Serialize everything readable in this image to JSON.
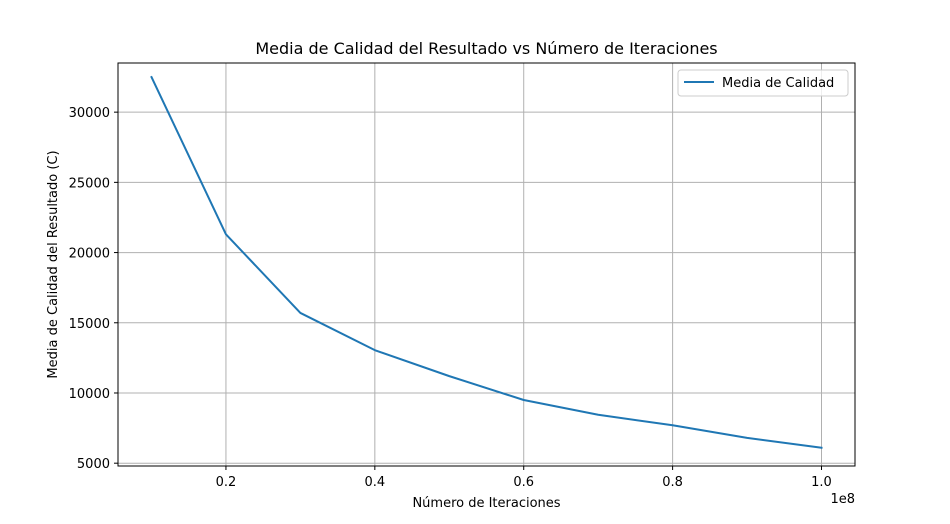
{
  "chart_data": {
    "type": "line",
    "title": "Media de Calidad del Resultado vs Número de Iteraciones",
    "xlabel": "Número de Iteraciones",
    "ylabel": "Media de Calidad del Resultado (C)",
    "x_offset_label": "1e8",
    "xlim": [
      0.055,
      1.045
    ],
    "ylim": [
      4800,
      33500
    ],
    "x_ticks": [
      0.2,
      0.4,
      0.6,
      0.8,
      1.0
    ],
    "x_tick_labels": [
      "0.2",
      "0.4",
      "0.6",
      "0.8",
      "1.0"
    ],
    "y_ticks": [
      5000,
      10000,
      15000,
      20000,
      25000,
      30000
    ],
    "y_tick_labels": [
      "5000",
      "10000",
      "15000",
      "20000",
      "25000",
      "30000"
    ],
    "grid": true,
    "legend_position": "top-right",
    "series": [
      {
        "name": "Media de Calidad",
        "color": "#1f77b4",
        "x": [
          0.1,
          0.2,
          0.3,
          0.4,
          0.5,
          0.6,
          0.7,
          0.8,
          0.9,
          1.0
        ],
        "values": [
          32500,
          21300,
          15700,
          13050,
          11200,
          9500,
          8450,
          7700,
          6800,
          6100
        ]
      }
    ]
  }
}
